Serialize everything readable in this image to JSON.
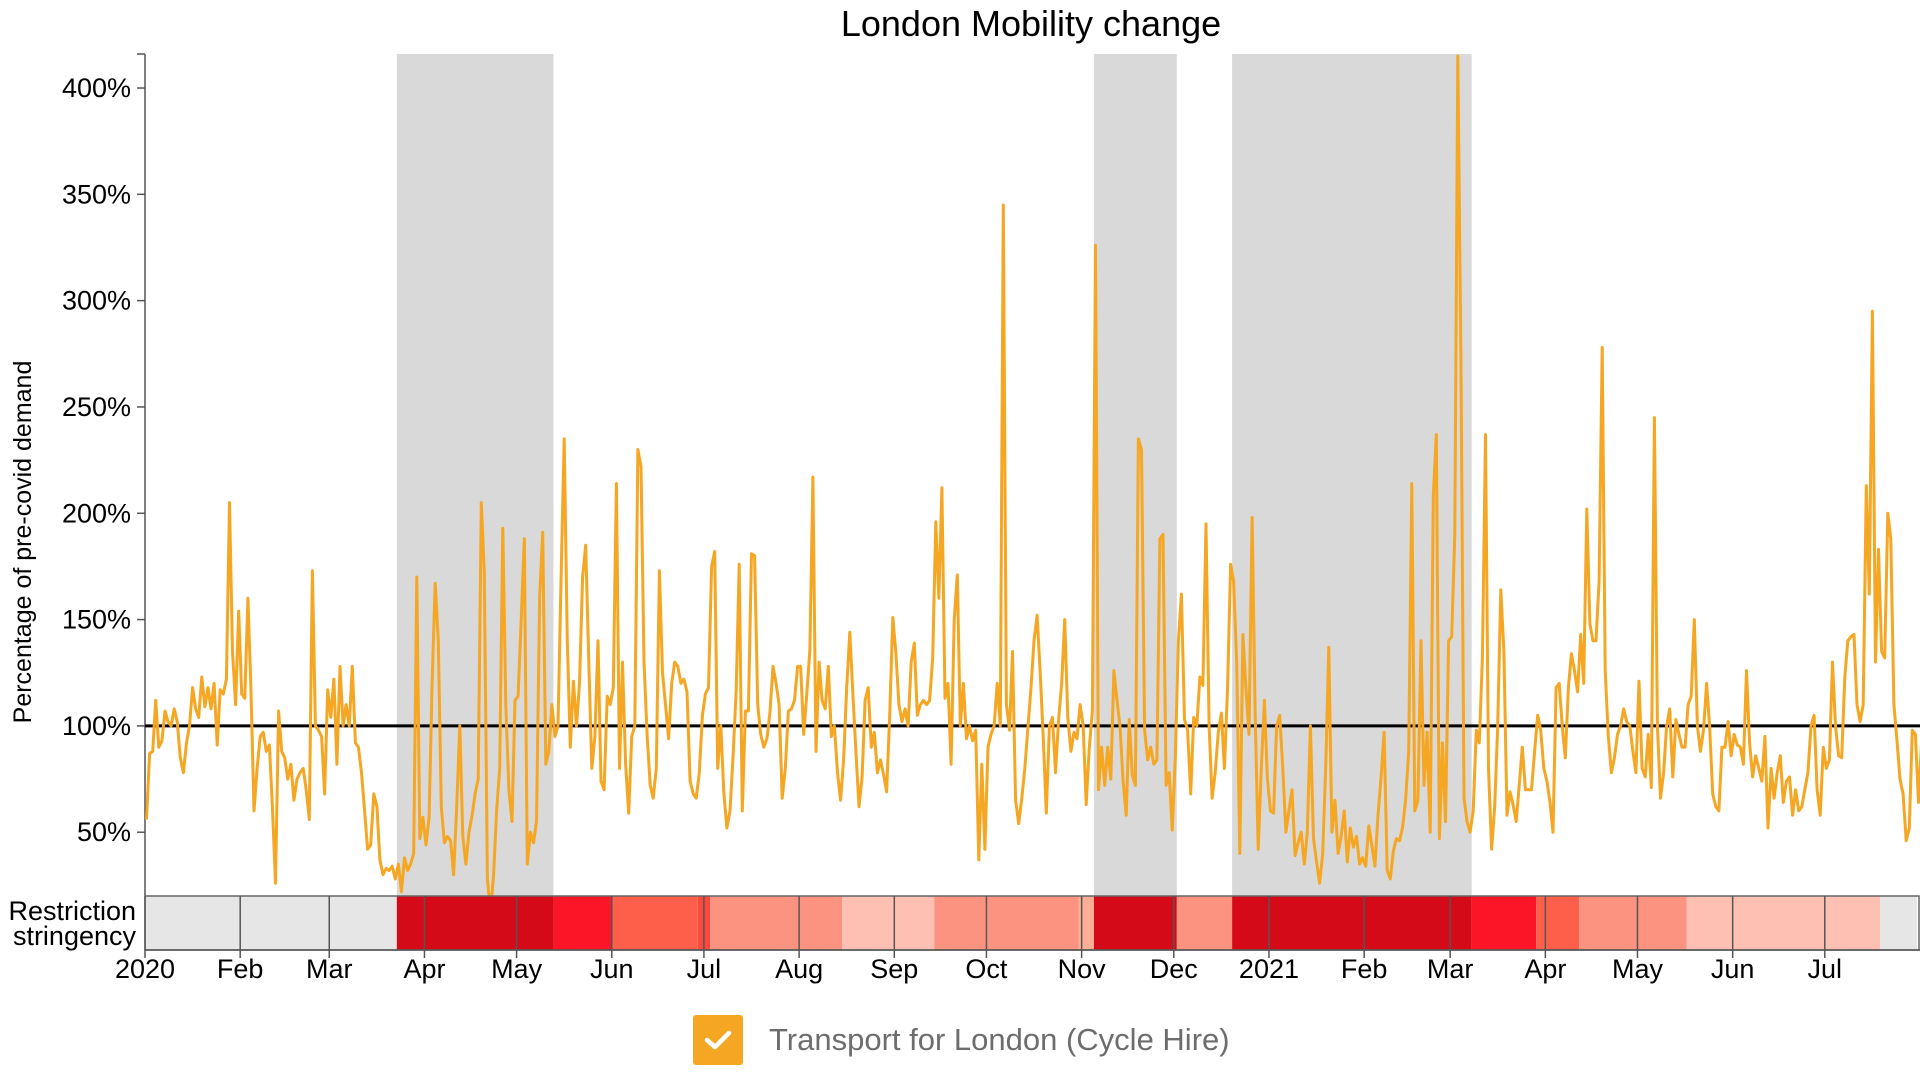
{
  "chart_data": {
    "type": "line",
    "title": "London Mobility change",
    "ylabel": "Percentage of pre-covid demand",
    "xlabel": "",
    "x_start": "2020-01-01",
    "x_end": "2021-07-31",
    "ylim": [
      20,
      416
    ],
    "yticks": [
      50,
      100,
      150,
      200,
      250,
      300,
      350,
      400
    ],
    "ytick_labels": [
      "50%",
      "100%",
      "150%",
      "200%",
      "250%",
      "300%",
      "350%",
      "400%"
    ],
    "xticks": [
      {
        "date": "2020-01-01",
        "label": "2020"
      },
      {
        "date": "2020-02-01",
        "label": "Feb"
      },
      {
        "date": "2020-03-01",
        "label": "Mar"
      },
      {
        "date": "2020-04-01",
        "label": "Apr"
      },
      {
        "date": "2020-05-01",
        "label": "May"
      },
      {
        "date": "2020-06-01",
        "label": "Jun"
      },
      {
        "date": "2020-07-01",
        "label": "Jul"
      },
      {
        "date": "2020-08-01",
        "label": "Aug"
      },
      {
        "date": "2020-09-01",
        "label": "Sep"
      },
      {
        "date": "2020-10-01",
        "label": "Oct"
      },
      {
        "date": "2020-11-01",
        "label": "Nov"
      },
      {
        "date": "2020-12-01",
        "label": "Dec"
      },
      {
        "date": "2021-01-01",
        "label": "2021"
      },
      {
        "date": "2021-02-01",
        "label": "Feb"
      },
      {
        "date": "2021-03-01",
        "label": "Mar"
      },
      {
        "date": "2021-04-01",
        "label": "Apr"
      },
      {
        "date": "2021-05-01",
        "label": "May"
      },
      {
        "date": "2021-06-01",
        "label": "Jun"
      },
      {
        "date": "2021-07-01",
        "label": "Jul"
      }
    ],
    "reference_line": 100,
    "lockdown_periods": [
      {
        "start": "2020-03-23",
        "end": "2020-05-13"
      },
      {
        "start": "2020-11-05",
        "end": "2020-12-02"
      },
      {
        "start": "2020-12-20",
        "end": "2021-03-08"
      }
    ],
    "restriction_label_line1": "Restriction",
    "restriction_label_line2": "stringency",
    "restriction_bands": [
      {
        "start": "2020-01-01",
        "end": "2020-03-23",
        "color": "#e6e6e6"
      },
      {
        "start": "2020-03-23",
        "end": "2020-05-13",
        "color": "#d50a18"
      },
      {
        "start": "2020-05-13",
        "end": "2020-06-01",
        "color": "#fc1427"
      },
      {
        "start": "2020-06-01",
        "end": "2020-06-29",
        "color": "#fd5f4b"
      },
      {
        "start": "2020-06-29",
        "end": "2020-07-03",
        "color": "#fb4a3c"
      },
      {
        "start": "2020-07-03",
        "end": "2020-08-15",
        "color": "#fc9380"
      },
      {
        "start": "2020-08-15",
        "end": "2020-09-01",
        "color": "#fdc0b3"
      },
      {
        "start": "2020-09-01",
        "end": "2020-09-14",
        "color": "#fdc0b3"
      },
      {
        "start": "2020-09-14",
        "end": "2020-10-31",
        "color": "#fc9380"
      },
      {
        "start": "2020-10-31",
        "end": "2020-11-05",
        "color": "#fdae99"
      },
      {
        "start": "2020-11-05",
        "end": "2020-12-02",
        "color": "#d50a18"
      },
      {
        "start": "2020-12-02",
        "end": "2020-12-20",
        "color": "#fc9380"
      },
      {
        "start": "2020-12-20",
        "end": "2021-03-08",
        "color": "#d50a18"
      },
      {
        "start": "2021-03-08",
        "end": "2021-03-29",
        "color": "#fc1427"
      },
      {
        "start": "2021-03-29",
        "end": "2021-04-12",
        "color": "#fd5f4b"
      },
      {
        "start": "2021-04-12",
        "end": "2021-05-17",
        "color": "#fc9380"
      },
      {
        "start": "2021-05-17",
        "end": "2021-07-19",
        "color": "#fdc0b3"
      },
      {
        "start": "2021-07-19",
        "end": "2021-07-31",
        "color": "#e6e6e6"
      }
    ],
    "series": [
      {
        "name": "Transport for London (Cycle Hire)",
        "color": "#f5a623",
        "start_date": "2020-01-01",
        "step_days": 1,
        "values": [
          56,
          87,
          88,
          112,
          90,
          93,
          107,
          102,
          100,
          108,
          102,
          85,
          78,
          92,
          100,
          118,
          108,
          104,
          123,
          109,
          118,
          108,
          120,
          91,
          117,
          115,
          122,
          205,
          135,
          110,
          154,
          115,
          113,
          160,
          118,
          60,
          80,
          95,
          97,
          88,
          91,
          62,
          26,
          107,
          88,
          85,
          75,
          82,
          65,
          75,
          78,
          80,
          70,
          56,
          173,
          100,
          98,
          95,
          68,
          117,
          104,
          122,
          82,
          128,
          100,
          110,
          100,
          128,
          92,
          90,
          78,
          60,
          42,
          44,
          68,
          62,
          37,
          30,
          33,
          32,
          34,
          28,
          35,
          22,
          38,
          32,
          35,
          40,
          170,
          47,
          57,
          44,
          57,
          120,
          167,
          140,
          62,
          45,
          48,
          46,
          30,
          62,
          100,
          48,
          35,
          50,
          58,
          68,
          75,
          205,
          172,
          28,
          12,
          30,
          60,
          80,
          193,
          110,
          70,
          55,
          112,
          114,
          150,
          188,
          35,
          50,
          45,
          55,
          160,
          191,
          82,
          88,
          110,
          95,
          100,
          170,
          235,
          140,
          90,
          121,
          100,
          120,
          170,
          185,
          130,
          80,
          95,
          140,
          74,
          70,
          114,
          110,
          118,
          214,
          80,
          130,
          82,
          59,
          95,
          100,
          230,
          222,
          130,
          96,
          72,
          66,
          80,
          173,
          125,
          110,
          94,
          120,
          130,
          128,
          120,
          122,
          116,
          74,
          68,
          66,
          78,
          105,
          115,
          118,
          175,
          182,
          80,
          100,
          68,
          52,
          60,
          86,
          117,
          176,
          60,
          107,
          107,
          181,
          180,
          110,
          96,
          90,
          94,
          106,
          128,
          120,
          110,
          66,
          80,
          107,
          108,
          112,
          128,
          128,
          96,
          115,
          136,
          217,
          88,
          130,
          112,
          108,
          128,
          95,
          100,
          78,
          65,
          84,
          118,
          144,
          115,
          88,
          62,
          76,
          112,
          118,
          90,
          97,
          78,
          84,
          77,
          69,
          105,
          151,
          135,
          110,
          102,
          108,
          100,
          130,
          139,
          105,
          110,
          112,
          110,
          112,
          132,
          196,
          160,
          212,
          113,
          120,
          82,
          150,
          171,
          100,
          120,
          94,
          100,
          93,
          98,
          37,
          82,
          42,
          90,
          96,
          100,
          120,
          100,
          345,
          110,
          98,
          135,
          65,
          54,
          66,
          80,
          99,
          118,
          140,
          152,
          125,
          95,
          59,
          100,
          104,
          78,
          103,
          120,
          150,
          104,
          88,
          97,
          94,
          110,
          100,
          63,
          90,
          107,
          326,
          70,
          90,
          72,
          90,
          75,
          126,
          112,
          100,
          74,
          58,
          103,
          77,
          72,
          235,
          230,
          98,
          84,
          90,
          82,
          84,
          188,
          190,
          72,
          78,
          51,
          85,
          140,
          162,
          103,
          98,
          68,
          104,
          100,
          123,
          119,
          195,
          100,
          66,
          78,
          97,
          106,
          80,
          117,
          176,
          168,
          130,
          40,
          143,
          118,
          96,
          198,
          107,
          42,
          80,
          112,
          75,
          60,
          59,
          100,
          105,
          80,
          50,
          60,
          70,
          39,
          45,
          50,
          35,
          50,
          100,
          47,
          36,
          26,
          40,
          82,
          137,
          50,
          65,
          40,
          48,
          60,
          36,
          52,
          43,
          48,
          35,
          38,
          34,
          53,
          44,
          34,
          58,
          76,
          97,
          32,
          28,
          41,
          47,
          46,
          52,
          65,
          88,
          214,
          60,
          65,
          140,
          72,
          97,
          50,
          208,
          237,
          47,
          92,
          55,
          140,
          142,
          190,
          415,
          275,
          66,
          55,
          50,
          60,
          98,
          92,
          132,
          237,
          80,
          42,
          62,
          100,
          164,
          135,
          58,
          69,
          63,
          55,
          72,
          90,
          70,
          70,
          70,
          88,
          105,
          98,
          80,
          74,
          64,
          50,
          118,
          120,
          100,
          85,
          118,
          134,
          126,
          116,
          143,
          120,
          202,
          148,
          140,
          140,
          168,
          278,
          126,
          95,
          78,
          85,
          96,
          100,
          108,
          102,
          100,
          88,
          78,
          121,
          80,
          76,
          96,
          71,
          245,
          100,
          66,
          78,
          100,
          108,
          76,
          103,
          96,
          90,
          90,
          110,
          114,
          150,
          100,
          88,
          98,
          120,
          100,
          68,
          62,
          60,
          90,
          90,
          102,
          86,
          96,
          91,
          90,
          82,
          126,
          92,
          76,
          86,
          80,
          74,
          95,
          52,
          80,
          66,
          78,
          86,
          64,
          74,
          76,
          58,
          70,
          60,
          62,
          70,
          78,
          100,
          105,
          70,
          58,
          90,
          80,
          84,
          130,
          100,
          86,
          85,
          123,
          140,
          142,
          143,
          110,
          102,
          110,
          213,
          162,
          295,
          130,
          183,
          135,
          132,
          200,
          188,
          110,
          93,
          75,
          68,
          46,
          52,
          98,
          96,
          64,
          92,
          80,
          88,
          100,
          104,
          86,
          110,
          118,
          60,
          90,
          84,
          94,
          86,
          100,
          110,
          74,
          76,
          94,
          100,
          106,
          120,
          116,
          96,
          70,
          105,
          90,
          84,
          100,
          106,
          168,
          165,
          158,
          100,
          85,
          100,
          110,
          120,
          184,
          68,
          68,
          115,
          134,
          70,
          105,
          70,
          88
        ]
      }
    ],
    "grid": false,
    "legend_position": "bottom-center"
  },
  "legend": {
    "label": "Transport for London (Cycle Hire)",
    "checked": true,
    "color": "#f5a623",
    "icon": "checkmark-icon"
  }
}
